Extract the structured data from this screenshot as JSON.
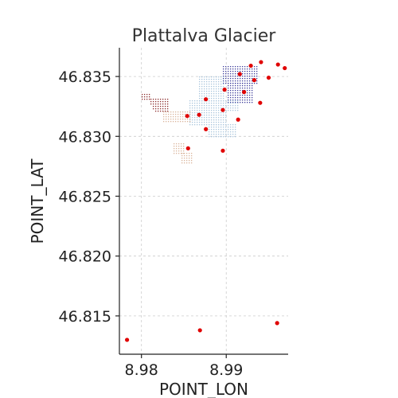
{
  "chart_data": {
    "type": "scatter",
    "title": "Plattalva Glacier",
    "xlabel": "POINT_LON",
    "ylabel": "POINT_LAT",
    "xlim": [
      8.9774,
      8.9973
    ],
    "ylim": [
      46.8118,
      46.8374
    ],
    "xticks": [
      8.98,
      8.99
    ],
    "xtick_labels": [
      "8.98",
      "8.99"
    ],
    "yticks": [
      46.815,
      46.82,
      46.825,
      46.83,
      46.835
    ],
    "ytick_labels": [
      "46.815",
      "46.820",
      "46.825",
      "46.830",
      "46.835"
    ],
    "grid": true,
    "colors": {
      "measurement_points": "#e00000",
      "dem_high": "#3b3b9a",
      "dem_mid": "#a8c4dc",
      "dem_low": "#d9b49a",
      "dem_dark": "#8a2a2a"
    },
    "series": [
      {
        "role": "measurement_points",
        "x": [
          8.9961,
          8.9969,
          8.9941,
          8.9929,
          8.9916,
          8.995,
          8.9933,
          8.9898,
          8.9921,
          8.9876,
          8.994,
          8.9896,
          8.9854,
          8.9868,
          8.9914,
          8.9876,
          8.9855,
          8.9896,
          8.9783,
          8.9869,
          8.996
        ],
        "y": [
          46.836,
          46.8357,
          46.8362,
          46.8359,
          46.8352,
          46.8349,
          46.8347,
          46.8339,
          46.8337,
          46.8331,
          46.8328,
          46.8322,
          46.8317,
          46.8318,
          46.8314,
          46.8306,
          46.829,
          46.8288,
          46.813,
          46.8138,
          46.8144
        ]
      }
    ]
  }
}
